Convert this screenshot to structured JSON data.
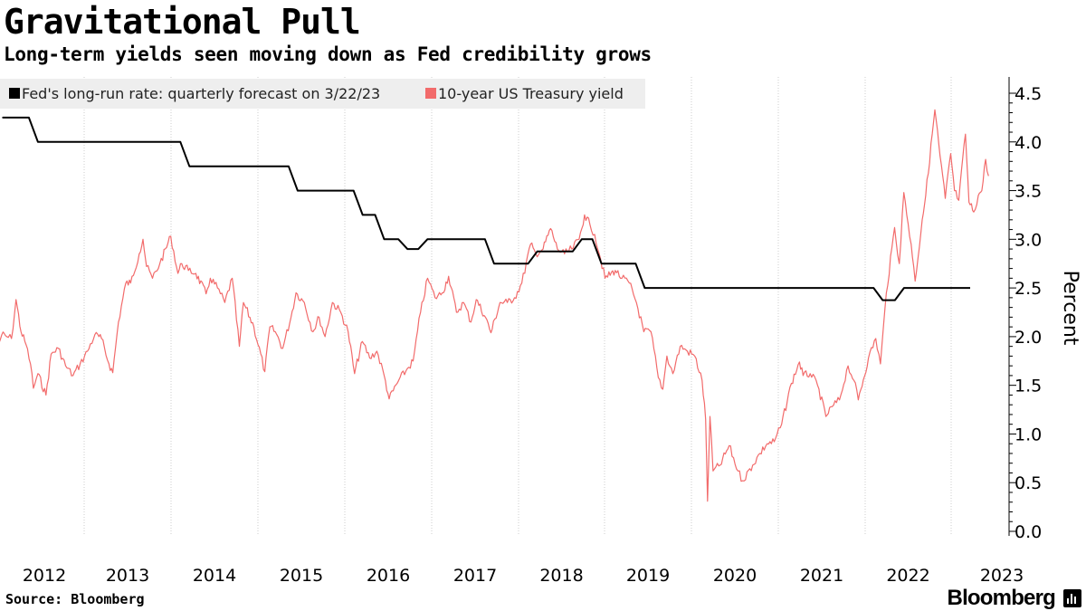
{
  "header": {
    "title": "Gravitational Pull",
    "subtitle": "Long-term yields seen moving down as Fed credibility grows"
  },
  "footer": {
    "source": "Source: Bloomberg",
    "brand": "Bloomberg"
  },
  "colors": {
    "fed_line": "#000000",
    "treasury_line": "#f26b6b",
    "grid": "#cccccc",
    "legend_bg": "#eeeeee"
  },
  "chart_data": {
    "type": "line",
    "title": "",
    "xlabel": "",
    "ylabel": "Percent",
    "ylim": [
      0.0,
      4.5
    ],
    "y_ticks": [
      "0.0",
      "0.5",
      "1.0",
      "1.5",
      "2.0",
      "2.5",
      "3.0",
      "3.5",
      "4.0",
      "4.5"
    ],
    "y_axis_side": "right",
    "x_ticks": [
      "2012",
      "2013",
      "2014",
      "2015",
      "2016",
      "2017",
      "2018",
      "2019",
      "2020",
      "2021",
      "2022",
      "2023"
    ],
    "xlim": [
      "2012-01-01",
      "2023-03-31"
    ],
    "grid": "vertical dotted at year boundaries",
    "legend": "top-left",
    "series": [
      {
        "name": "Fed's long-run rate: quarterly forecast on 3/22/23",
        "color": "#000000",
        "style": "step",
        "points": [
          [
            "2012-01-25",
            4.25
          ],
          [
            "2012-06-20",
            4.0
          ],
          [
            "2012-09-13",
            4.0
          ],
          [
            "2012-12-12",
            4.0
          ],
          [
            "2013-03-20",
            4.0
          ],
          [
            "2013-06-19",
            4.0
          ],
          [
            "2013-09-18",
            4.0
          ],
          [
            "2013-12-18",
            4.0
          ],
          [
            "2014-03-19",
            3.75
          ],
          [
            "2014-06-18",
            3.75
          ],
          [
            "2014-09-17",
            3.75
          ],
          [
            "2014-12-17",
            3.75
          ],
          [
            "2015-03-18",
            3.75
          ],
          [
            "2015-06-17",
            3.5
          ],
          [
            "2015-09-17",
            3.5
          ],
          [
            "2015-12-16",
            3.5
          ],
          [
            "2016-03-16",
            3.25
          ],
          [
            "2016-06-15",
            3.0
          ],
          [
            "2016-09-21",
            2.9
          ],
          [
            "2016-12-14",
            3.0
          ],
          [
            "2017-03-15",
            3.0
          ],
          [
            "2017-06-14",
            3.0
          ],
          [
            "2017-09-20",
            2.75
          ],
          [
            "2017-12-13",
            2.75
          ],
          [
            "2018-03-21",
            2.875
          ],
          [
            "2018-06-13",
            2.875
          ],
          [
            "2018-09-26",
            3.0
          ],
          [
            "2018-12-19",
            2.75
          ],
          [
            "2019-03-20",
            2.75
          ],
          [
            "2019-06-19",
            2.5
          ],
          [
            "2019-09-18",
            2.5
          ],
          [
            "2019-12-11",
            2.5
          ],
          [
            "2020-06-10",
            2.5
          ],
          [
            "2020-09-16",
            2.5
          ],
          [
            "2020-12-16",
            2.5
          ],
          [
            "2021-03-17",
            2.5
          ],
          [
            "2021-06-16",
            2.5
          ],
          [
            "2021-09-22",
            2.5
          ],
          [
            "2021-12-15",
            2.5
          ],
          [
            "2022-03-16",
            2.375
          ],
          [
            "2022-06-15",
            2.5
          ],
          [
            "2022-09-21",
            2.5
          ],
          [
            "2022-12-14",
            2.5
          ],
          [
            "2023-03-22",
            2.5
          ]
        ]
      },
      {
        "name": "10-year US Treasury yield",
        "color": "#f26b6b",
        "style": "line",
        "points": [
          [
            "2012-01-01",
            1.88
          ],
          [
            "2012-01-20",
            2.02
          ],
          [
            "2012-02-10",
            2.0
          ],
          [
            "2012-03-01",
            1.98
          ],
          [
            "2012-03-20",
            2.38
          ],
          [
            "2012-04-10",
            2.05
          ],
          [
            "2012-05-01",
            1.92
          ],
          [
            "2012-05-20",
            1.72
          ],
          [
            "2012-06-01",
            1.47
          ],
          [
            "2012-06-20",
            1.62
          ],
          [
            "2012-07-24",
            1.4
          ],
          [
            "2012-08-15",
            1.82
          ],
          [
            "2012-09-14",
            1.88
          ],
          [
            "2012-10-15",
            1.7
          ],
          [
            "2012-11-15",
            1.6
          ],
          [
            "2012-12-15",
            1.72
          ],
          [
            "2013-01-15",
            1.85
          ],
          [
            "2013-02-15",
            2.02
          ],
          [
            "2013-03-15",
            1.98
          ],
          [
            "2013-04-15",
            1.72
          ],
          [
            "2013-05-01",
            1.63
          ],
          [
            "2013-05-25",
            2.15
          ],
          [
            "2013-06-25",
            2.55
          ],
          [
            "2013-07-15",
            2.55
          ],
          [
            "2013-08-20",
            2.85
          ],
          [
            "2013-09-05",
            3.0
          ],
          [
            "2013-09-20",
            2.72
          ],
          [
            "2013-10-15",
            2.6
          ],
          [
            "2013-11-15",
            2.75
          ],
          [
            "2013-12-31",
            3.03
          ],
          [
            "2014-01-30",
            2.65
          ],
          [
            "2014-02-15",
            2.75
          ],
          [
            "2014-03-15",
            2.68
          ],
          [
            "2014-04-15",
            2.65
          ],
          [
            "2014-05-28",
            2.44
          ],
          [
            "2014-06-15",
            2.6
          ],
          [
            "2014-07-15",
            2.5
          ],
          [
            "2014-08-15",
            2.35
          ],
          [
            "2014-09-15",
            2.6
          ],
          [
            "2014-10-15",
            1.9
          ],
          [
            "2014-11-01",
            2.35
          ],
          [
            "2014-12-15",
            2.1
          ],
          [
            "2015-01-30",
            1.64
          ],
          [
            "2015-02-20",
            2.1
          ],
          [
            "2015-03-15",
            2.05
          ],
          [
            "2015-04-15",
            1.88
          ],
          [
            "2015-05-20",
            2.2
          ],
          [
            "2015-06-10",
            2.45
          ],
          [
            "2015-07-15",
            2.35
          ],
          [
            "2015-08-20",
            2.05
          ],
          [
            "2015-09-15",
            2.2
          ],
          [
            "2015-10-10",
            2.0
          ],
          [
            "2015-11-10",
            2.35
          ],
          [
            "2015-12-15",
            2.25
          ],
          [
            "2016-01-15",
            2.05
          ],
          [
            "2016-02-11",
            1.62
          ],
          [
            "2016-03-15",
            1.95
          ],
          [
            "2016-04-15",
            1.78
          ],
          [
            "2016-05-15",
            1.85
          ],
          [
            "2016-06-15",
            1.6
          ],
          [
            "2016-07-06",
            1.36
          ],
          [
            "2016-08-15",
            1.55
          ],
          [
            "2016-09-15",
            1.65
          ],
          [
            "2016-10-15",
            1.75
          ],
          [
            "2016-11-15",
            2.25
          ],
          [
            "2016-12-15",
            2.6
          ],
          [
            "2017-01-15",
            2.4
          ],
          [
            "2017-02-15",
            2.45
          ],
          [
            "2017-03-13",
            2.62
          ],
          [
            "2017-04-15",
            2.25
          ],
          [
            "2017-05-15",
            2.35
          ],
          [
            "2017-06-15",
            2.15
          ],
          [
            "2017-07-07",
            2.38
          ],
          [
            "2017-08-15",
            2.2
          ],
          [
            "2017-09-07",
            2.04
          ],
          [
            "2017-10-15",
            2.35
          ],
          [
            "2017-11-15",
            2.35
          ],
          [
            "2017-12-15",
            2.4
          ],
          [
            "2018-01-15",
            2.55
          ],
          [
            "2018-02-21",
            2.95
          ],
          [
            "2018-03-15",
            2.85
          ],
          [
            "2018-04-15",
            2.9
          ],
          [
            "2018-05-17",
            3.11
          ],
          [
            "2018-06-15",
            2.9
          ],
          [
            "2018-07-15",
            2.85
          ],
          [
            "2018-08-15",
            2.9
          ],
          [
            "2018-09-15",
            3.0
          ],
          [
            "2018-10-08",
            3.25
          ],
          [
            "2018-10-31",
            3.15
          ],
          [
            "2018-11-20",
            3.05
          ],
          [
            "2018-12-15",
            2.8
          ],
          [
            "2019-01-03",
            2.6
          ],
          [
            "2019-02-15",
            2.68
          ],
          [
            "2019-03-15",
            2.6
          ],
          [
            "2019-04-15",
            2.55
          ],
          [
            "2019-05-15",
            2.35
          ],
          [
            "2019-06-15",
            2.05
          ],
          [
            "2019-07-15",
            2.05
          ],
          [
            "2019-08-15",
            1.58
          ],
          [
            "2019-09-03",
            1.46
          ],
          [
            "2019-09-20",
            1.8
          ],
          [
            "2019-10-15",
            1.62
          ],
          [
            "2019-11-15",
            1.9
          ],
          [
            "2019-12-15",
            1.85
          ],
          [
            "2020-01-15",
            1.8
          ],
          [
            "2020-02-15",
            1.55
          ],
          [
            "2020-03-01",
            1.15
          ],
          [
            "2020-03-09",
            0.31
          ],
          [
            "2020-03-19",
            1.18
          ],
          [
            "2020-04-01",
            0.62
          ],
          [
            "2020-05-01",
            0.68
          ],
          [
            "2020-06-08",
            0.88
          ],
          [
            "2020-07-15",
            0.62
          ],
          [
            "2020-08-04",
            0.52
          ],
          [
            "2020-09-15",
            0.68
          ],
          [
            "2020-10-15",
            0.8
          ],
          [
            "2020-11-15",
            0.9
          ],
          [
            "2020-12-15",
            0.92
          ],
          [
            "2021-01-15",
            1.1
          ],
          [
            "2021-02-25",
            1.52
          ],
          [
            "2021-03-31",
            1.74
          ],
          [
            "2021-04-15",
            1.6
          ],
          [
            "2021-05-15",
            1.62
          ],
          [
            "2021-06-15",
            1.5
          ],
          [
            "2021-07-20",
            1.18
          ],
          [
            "2021-08-15",
            1.28
          ],
          [
            "2021-09-15",
            1.35
          ],
          [
            "2021-10-21",
            1.7
          ],
          [
            "2021-11-15",
            1.55
          ],
          [
            "2021-12-03",
            1.35
          ],
          [
            "2022-01-15",
            1.78
          ],
          [
            "2022-02-15",
            1.98
          ],
          [
            "2022-03-07",
            1.72
          ],
          [
            "2022-04-01",
            2.45
          ],
          [
            "2022-05-06",
            3.12
          ],
          [
            "2022-05-26",
            2.75
          ],
          [
            "2022-06-14",
            3.48
          ],
          [
            "2022-07-15",
            2.95
          ],
          [
            "2022-08-01",
            2.57
          ],
          [
            "2022-08-31",
            3.2
          ],
          [
            "2022-09-15",
            3.45
          ],
          [
            "2022-10-24",
            4.33
          ],
          [
            "2022-11-15",
            3.85
          ],
          [
            "2022-12-07",
            3.42
          ],
          [
            "2022-12-30",
            3.88
          ],
          [
            "2023-01-15",
            3.5
          ],
          [
            "2023-02-02",
            3.4
          ],
          [
            "2023-03-02",
            4.08
          ],
          [
            "2023-03-17",
            3.38
          ],
          [
            "2023-04-06",
            3.28
          ],
          [
            "2023-04-25",
            3.45
          ],
          [
            "2023-05-10",
            3.5
          ],
          [
            "2023-05-26",
            3.82
          ],
          [
            "2023-06-07",
            3.65
          ]
        ]
      }
    ]
  }
}
